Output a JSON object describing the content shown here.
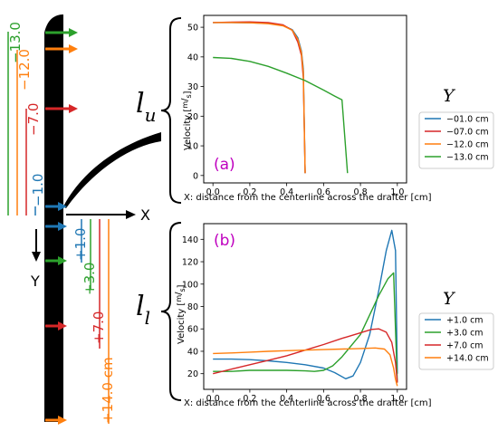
{
  "colors": {
    "blue": "#1f77b4",
    "red": "#d62728",
    "orange": "#ff7f0e",
    "green": "#2ca02c",
    "magenta": "#bf00bf",
    "ink": "#000000"
  },
  "schematic": {
    "x_axis_label": "X",
    "y_axis_label": "Y",
    "upper_region_label": {
      "main": "l",
      "sub": "u"
    },
    "lower_region_label": {
      "main": "l",
      "sub": "l"
    },
    "station_labels": [
      {
        "text": "−13.0",
        "color": "green"
      },
      {
        "text": "−12.0",
        "color": "orange"
      },
      {
        "text": "−7.0",
        "color": "red"
      },
      {
        "text": "−1.0",
        "color": "blue"
      },
      {
        "text": "+1.0",
        "color": "blue"
      },
      {
        "text": "+3.0",
        "color": "green"
      },
      {
        "text": "+7.0",
        "color": "red"
      },
      {
        "text": "+14.0 cm",
        "color": "orange"
      }
    ]
  },
  "chart_data": [
    {
      "type": "line",
      "panel_label": "(a)",
      "xlabel": "X: distance from the centerline across the drafter [cm]",
      "ylabel": "Velocity [m/s]",
      "ylabel_main": "Velocity",
      "ylabel_unit_num": "m",
      "ylabel_unit_den": "s",
      "xlim": [
        -0.05,
        1.05
      ],
      "ylim": [
        -2.5,
        54
      ],
      "xticks": [
        "0.0",
        "0.2",
        "0.4",
        "0.6",
        "0.8",
        "1.0"
      ],
      "xtick_values": [
        0.0,
        0.2,
        0.4,
        0.6,
        0.8,
        1.0
      ],
      "yticks": [
        "0",
        "10",
        "20",
        "30",
        "40",
        "50"
      ],
      "ytick_values": [
        0,
        10,
        20,
        30,
        40,
        50
      ],
      "legend_title": "Y",
      "legend_position": "right, outside",
      "series": [
        {
          "name": "−01.0 cm",
          "color": "blue",
          "x": [
            0.0,
            0.1,
            0.2,
            0.3,
            0.38,
            0.43,
            0.46,
            0.48,
            0.49,
            0.5
          ],
          "y": [
            51.6,
            51.6,
            51.5,
            51.3,
            50.6,
            49.2,
            46.5,
            42.0,
            36.0,
            0.8
          ]
        },
        {
          "name": "−07.0 cm",
          "color": "red",
          "x": [
            0.0,
            0.1,
            0.2,
            0.3,
            0.38,
            0.43,
            0.46,
            0.48,
            0.49,
            0.5
          ],
          "y": [
            51.6,
            51.7,
            51.8,
            51.6,
            50.8,
            49.0,
            45.0,
            40.5,
            33.0,
            0.8
          ]
        },
        {
          "name": "−12.0 cm",
          "color": "orange",
          "x": [
            0.0,
            0.1,
            0.2,
            0.3,
            0.38,
            0.43,
            0.46,
            0.48,
            0.49,
            0.5
          ],
          "y": [
            51.6,
            51.6,
            51.5,
            51.2,
            50.5,
            49.0,
            46.0,
            41.5,
            35.0,
            0.8
          ]
        },
        {
          "name": "−13.0 cm",
          "color": "green",
          "x": [
            0.0,
            0.1,
            0.2,
            0.3,
            0.4,
            0.5,
            0.6,
            0.66,
            0.7,
            0.73
          ],
          "y": [
            39.8,
            39.5,
            38.5,
            36.8,
            34.5,
            32.0,
            28.8,
            26.8,
            25.5,
            0.8
          ]
        }
      ]
    },
    {
      "type": "line",
      "panel_label": "(b)",
      "xlabel": "X: distance from the centerline across the drafter [cm]",
      "ylabel": "Velocity [m/s]",
      "ylabel_main": "Velocity",
      "ylabel_unit_num": "m",
      "ylabel_unit_den": "s",
      "xlim": [
        -0.05,
        1.05
      ],
      "ylim": [
        6,
        154
      ],
      "xticks": [
        "0.0",
        "0.2",
        "0.4",
        "0.6",
        "0.8",
        "1.0"
      ],
      "xtick_values": [
        0.0,
        0.2,
        0.4,
        0.6,
        0.8,
        1.0
      ],
      "yticks": [
        "20",
        "40",
        "60",
        "80",
        "100",
        "120",
        "140"
      ],
      "ytick_values": [
        20,
        40,
        60,
        80,
        100,
        120,
        140
      ],
      "legend_title": "Y",
      "legend_position": "right, outside",
      "series": [
        {
          "name": "+1.0 cm",
          "color": "blue",
          "x": [
            0.0,
            0.1,
            0.2,
            0.3,
            0.4,
            0.5,
            0.6,
            0.66,
            0.72,
            0.76,
            0.8,
            0.85,
            0.9,
            0.94,
            0.97,
            0.99,
            1.0
          ],
          "y": [
            33,
            33,
            32.5,
            31.5,
            30,
            28,
            25,
            21,
            15.5,
            18,
            30,
            55,
            95,
            130,
            148,
            130,
            20
          ]
        },
        {
          "name": "+3.0 cm",
          "color": "green",
          "x": [
            0.0,
            0.1,
            0.2,
            0.3,
            0.4,
            0.5,
            0.55,
            0.6,
            0.65,
            0.7,
            0.8,
            0.9,
            0.95,
            0.98,
            1.0
          ],
          "y": [
            22,
            22,
            23,
            23,
            23,
            22.5,
            22,
            23,
            27,
            35,
            55,
            90,
            105,
            110,
            12
          ]
        },
        {
          "name": "+7.0 cm",
          "color": "red",
          "x": [
            0.0,
            0.1,
            0.2,
            0.3,
            0.4,
            0.5,
            0.6,
            0.7,
            0.8,
            0.86,
            0.9,
            0.94,
            0.97,
            0.99,
            1.0
          ],
          "y": [
            20,
            24,
            28,
            32,
            36,
            41,
            46,
            51.5,
            56.5,
            59.5,
            60,
            57,
            48,
            30,
            12
          ]
        },
        {
          "name": "+14.0 cm",
          "color": "orange",
          "x": [
            0.0,
            0.1,
            0.2,
            0.3,
            0.4,
            0.5,
            0.6,
            0.7,
            0.8,
            0.88,
            0.93,
            0.96,
            0.98,
            0.99,
            1.0
          ],
          "y": [
            38,
            38.5,
            39.2,
            40,
            40.5,
            41,
            41.5,
            42,
            42.5,
            43,
            42,
            37,
            25,
            15,
            9
          ]
        }
      ]
    }
  ]
}
